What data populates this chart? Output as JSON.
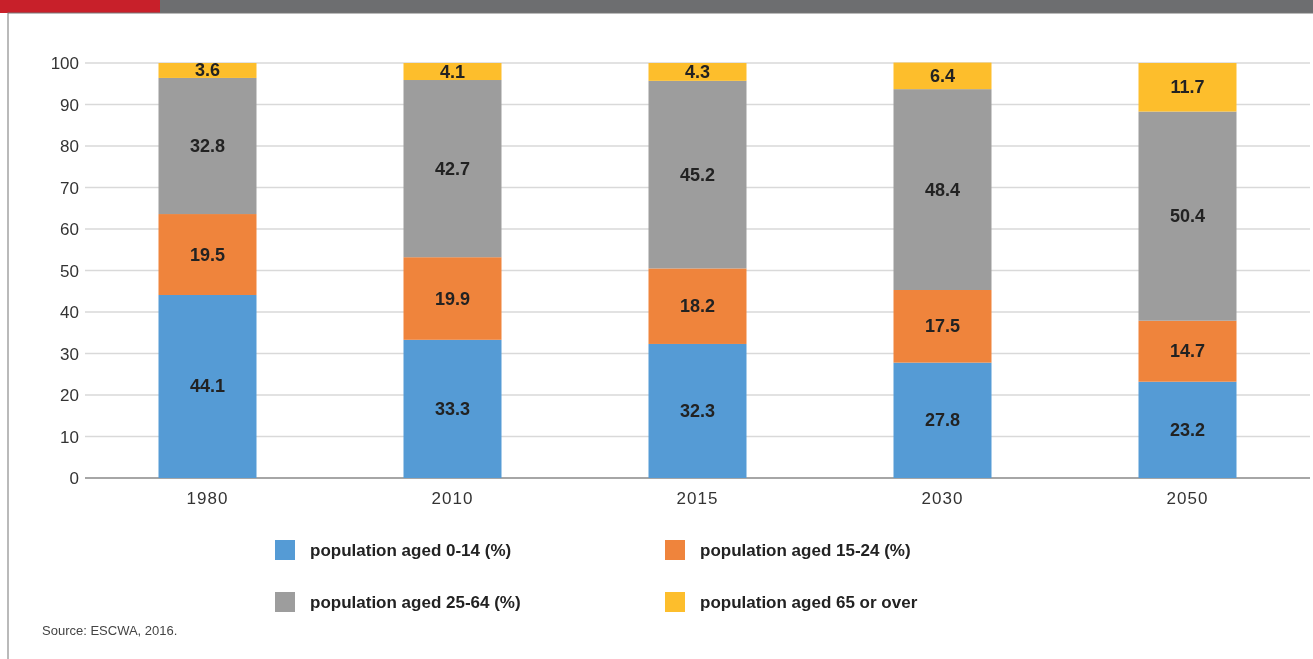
{
  "chart_data": {
    "type": "bar",
    "stacked": true,
    "categories": [
      "1980",
      "2010",
      "2015",
      "2030",
      "2050"
    ],
    "series": [
      {
        "name": "population aged 0-14 (%)",
        "color": "#559bd5",
        "values": [
          44.1,
          33.3,
          32.3,
          27.8,
          23.2
        ]
      },
      {
        "name": "population aged 15-24 (%)",
        "color": "#ef843c",
        "values": [
          19.5,
          19.9,
          18.2,
          17.5,
          14.7
        ]
      },
      {
        "name": "population aged 25-64 (%)",
        "color": "#9d9d9d",
        "values": [
          32.8,
          42.7,
          45.2,
          48.4,
          50.4
        ]
      },
      {
        "name": "population aged 65 or over",
        "color": "#fdbe2c",
        "values": [
          3.6,
          4.1,
          4.3,
          6.4,
          11.7
        ]
      }
    ],
    "ylim": [
      0,
      100
    ],
    "yticks": [
      0,
      10,
      20,
      30,
      40,
      50,
      60,
      70,
      80,
      90,
      100
    ],
    "grid": "y",
    "data_labels": true,
    "legend": "bottom",
    "annotations": [
      "Source: ESCWA, 2016."
    ]
  }
}
